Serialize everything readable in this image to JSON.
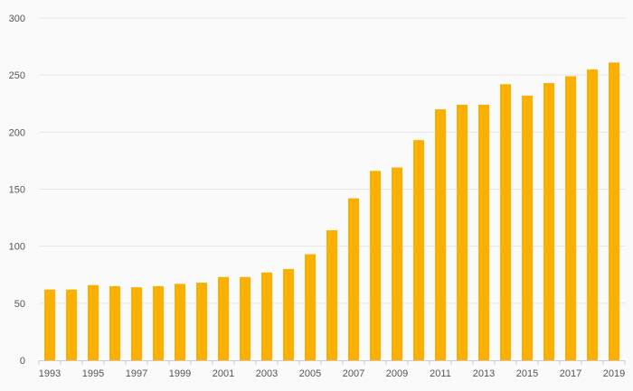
{
  "chart_data": {
    "type": "bar",
    "title": "",
    "xlabel": "",
    "ylabel": "",
    "categories": [
      "1993",
      "1994",
      "1995",
      "1996",
      "1997",
      "1998",
      "1999",
      "2000",
      "2001",
      "2002",
      "2003",
      "2004",
      "2005",
      "2006",
      "2007",
      "2008",
      "2009",
      "2010",
      "2011",
      "2012",
      "2013",
      "2014",
      "2015",
      "2016",
      "2017",
      "2018",
      "2019"
    ],
    "values": [
      62,
      62,
      66,
      65,
      64,
      65,
      67,
      68,
      73,
      73,
      77,
      80,
      93,
      114,
      142,
      166,
      169,
      193,
      220,
      224,
      224,
      242,
      232,
      243,
      249,
      255,
      261
    ],
    "x_tick_labels": [
      "1993",
      "1995",
      "1997",
      "1999",
      "2001",
      "2003",
      "2005",
      "2007",
      "2009",
      "2011",
      "2013",
      "2015",
      "2017",
      "2019"
    ],
    "y_ticks": [
      0,
      50,
      100,
      150,
      200,
      250,
      300
    ],
    "ylim": [
      0,
      300
    ],
    "grid": true,
    "bar_color": "#f9b000"
  }
}
